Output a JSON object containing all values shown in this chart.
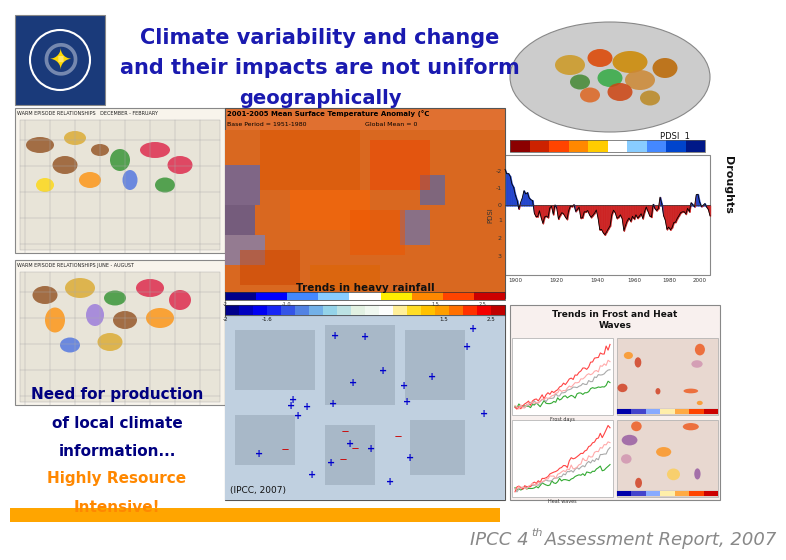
{
  "background_color": "#ffffff",
  "title_lines": [
    "Climate variability and change",
    "and their impacts are not uniform",
    "geographically"
  ],
  "title_color": "#1a1ab0",
  "title_fontsize": 15,
  "logo_bg": "#1a3a7a",
  "droughts_label": "Droughts",
  "trends_heavy_rainfall": "Trends in heavy rainfall",
  "trends_frost": "Trends in Frost and Heat\nWaves",
  "need_text_lines": [
    "Need for production",
    "of local climate",
    "information..."
  ],
  "need_text_color": "#000080",
  "highly_text_1": "Highly Resource",
  "highly_text_2": "Intensive!",
  "highly_color": "#ff8800",
  "ipcc_label": "(IPCC, 2007)",
  "footer_text_part1": "IPCC 4",
  "footer_superscript": "th",
  "footer_text_part2": " Assessment Report, 2007",
  "footer_color": "#888888",
  "footer_fontsize": 13,
  "orange_bar_color": "#ffa500",
  "dec_feb_title": "WARM EPISODE RELATIONSHIPS   DECEMBER - FEBRUARY",
  "jun_aug_title": "WARM EPISODE RELATIONSHIPS JUNE - AUGUST",
  "temp_anom_title": "2001-2005 Mean Surface Temperature Anomaly (°C",
  "base_period": "Base Period = 1951-1980",
  "global_mean": "Global Mean = 0",
  "pdsi_label": "PDSI  1"
}
